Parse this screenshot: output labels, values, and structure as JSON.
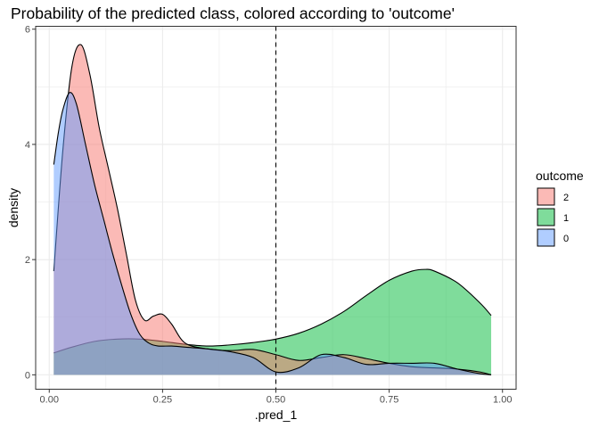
{
  "chart_data": {
    "type": "area",
    "title": "Probability of the predicted class, colored according to 'outcome'",
    "xlabel": ".pred_1",
    "ylabel": "density",
    "xlim": [
      -0.03,
      1.03
    ],
    "ylim": [
      -0.25,
      6.05
    ],
    "xticks": [
      0,
      0.25,
      0.5,
      0.75,
      1
    ],
    "xtick_labels": [
      "0.00",
      "0.25",
      "0.50",
      "0.75",
      "1.00"
    ],
    "yticks": [
      0,
      2,
      4,
      6
    ],
    "ytick_labels": [
      "0",
      "2",
      "4",
      "6"
    ],
    "grid": true,
    "vline": {
      "x": 0.5,
      "style": "dashed"
    },
    "legend": {
      "title": "outcome",
      "position": "right",
      "entries": [
        {
          "label": "2",
          "color": "#F8766D"
        },
        {
          "label": "1",
          "color": "#00BA38"
        },
        {
          "label": "0",
          "color": "#619CFF"
        }
      ]
    },
    "series": [
      {
        "name": "1",
        "color": "#00BA38",
        "x": [
          0.01,
          0.05,
          0.1,
          0.15,
          0.2,
          0.25,
          0.3,
          0.35,
          0.4,
          0.45,
          0.5,
          0.55,
          0.6,
          0.65,
          0.7,
          0.75,
          0.8,
          0.83,
          0.85,
          0.9,
          0.95,
          0.975
        ],
        "y": [
          0.38,
          0.48,
          0.58,
          0.62,
          0.62,
          0.58,
          0.53,
          0.5,
          0.52,
          0.56,
          0.62,
          0.72,
          0.88,
          1.1,
          1.38,
          1.64,
          1.8,
          1.83,
          1.8,
          1.6,
          1.25,
          1.03
        ]
      },
      {
        "name": "2",
        "color": "#F8766D",
        "x": [
          0.01,
          0.03,
          0.05,
          0.07,
          0.09,
          0.11,
          0.13,
          0.15,
          0.17,
          0.19,
          0.21,
          0.23,
          0.25,
          0.27,
          0.3,
          0.35,
          0.4,
          0.45,
          0.5,
          0.55,
          0.6,
          0.65,
          0.7,
          0.75,
          0.8,
          0.85,
          0.9,
          0.95,
          0.975
        ],
        "y": [
          1.8,
          3.9,
          5.35,
          5.73,
          5.2,
          4.3,
          3.6,
          2.9,
          2.1,
          1.3,
          0.95,
          1.02,
          1.05,
          0.88,
          0.55,
          0.45,
          0.42,
          0.44,
          0.35,
          0.25,
          0.3,
          0.35,
          0.28,
          0.2,
          0.14,
          0.12,
          0.1,
          0.05,
          0.0
        ]
      },
      {
        "name": "0",
        "color": "#619CFF",
        "x": [
          0.01,
          0.02,
          0.03,
          0.045,
          0.06,
          0.08,
          0.1,
          0.12,
          0.14,
          0.16,
          0.18,
          0.2,
          0.22,
          0.24,
          0.27,
          0.3,
          0.35,
          0.4,
          0.45,
          0.5,
          0.55,
          0.6,
          0.65,
          0.7,
          0.75,
          0.8,
          0.85,
          0.9,
          0.95,
          0.975
        ],
        "y": [
          3.65,
          4.2,
          4.6,
          4.9,
          4.7,
          4.0,
          3.3,
          2.7,
          2.1,
          1.55,
          1.05,
          0.7,
          0.55,
          0.5,
          0.5,
          0.48,
          0.45,
          0.4,
          0.3,
          0.05,
          0.12,
          0.35,
          0.3,
          0.18,
          0.2,
          0.2,
          0.2,
          0.1,
          0.02,
          0.0
        ]
      }
    ]
  }
}
